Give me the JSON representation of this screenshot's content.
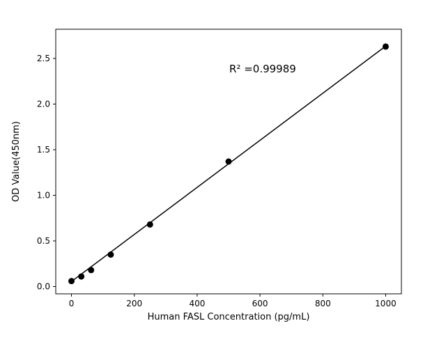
{
  "figure": {
    "background_color": "#ffffff",
    "foreground_color": "#000000"
  },
  "chart_data": {
    "type": "scatter",
    "title": "",
    "xlabel": "Human FASL Concentration (pg/mL)",
    "ylabel": "OD Value(450nm)",
    "annotation": "R² =0.99989",
    "r_squared": 0.99989,
    "xlim": [
      -50,
      1050
    ],
    "ylim": [
      -0.08,
      2.82
    ],
    "xticks": [
      0,
      200,
      400,
      600,
      800,
      1000
    ],
    "yticks": [
      0.0,
      0.5,
      1.0,
      1.5,
      2.0,
      2.5
    ],
    "grid": false,
    "legend_position": "none",
    "marker_color": "#000000",
    "line_color": "#000000",
    "points": [
      {
        "x": 0,
        "y": 0.06
      },
      {
        "x": 31.25,
        "y": 0.11
      },
      {
        "x": 62.5,
        "y": 0.18
      },
      {
        "x": 125,
        "y": 0.35
      },
      {
        "x": 250,
        "y": 0.68
      },
      {
        "x": 500,
        "y": 1.37
      },
      {
        "x": 1000,
        "y": 2.63
      }
    ],
    "fit_line": {
      "x": [
        0,
        1000
      ],
      "y": [
        0.055,
        2.635
      ]
    }
  }
}
